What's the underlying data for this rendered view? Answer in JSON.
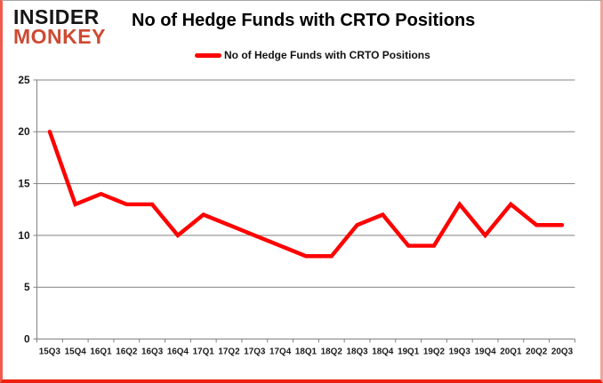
{
  "logo": {
    "line1": "INSIDER",
    "line2": "MONKEY"
  },
  "colors": {
    "line": "#FF0000",
    "grid": "#808080",
    "logo_red": "#CD4A32",
    "border_red": "#EE2111",
    "text": "#000000"
  },
  "chart_data": {
    "type": "line",
    "title": "No of Hedge Funds with CRTO Positions",
    "categories": [
      "15Q3",
      "15Q4",
      "16Q1",
      "16Q2",
      "16Q3",
      "16Q4",
      "17Q1",
      "17Q2",
      "17Q3",
      "17Q4",
      "18Q1",
      "18Q2",
      "18Q3",
      "18Q4",
      "19Q1",
      "19Q2",
      "19Q3",
      "19Q4",
      "20Q1",
      "20Q2",
      "20Q3"
    ],
    "series": [
      {
        "name": "No of Hedge Funds with CRTO Positions",
        "color": "#FF0000",
        "values": [
          20,
          13,
          14,
          13,
          13,
          10,
          12,
          11,
          10,
          9,
          8,
          8,
          11,
          12,
          9,
          9,
          13,
          10,
          13,
          11,
          11
        ]
      }
    ],
    "xlabel": "",
    "ylabel": "",
    "ylim": [
      0,
      25
    ],
    "yticks": [
      0,
      5,
      10,
      15,
      20,
      25
    ],
    "grid": true,
    "legend_position": "top-center"
  }
}
